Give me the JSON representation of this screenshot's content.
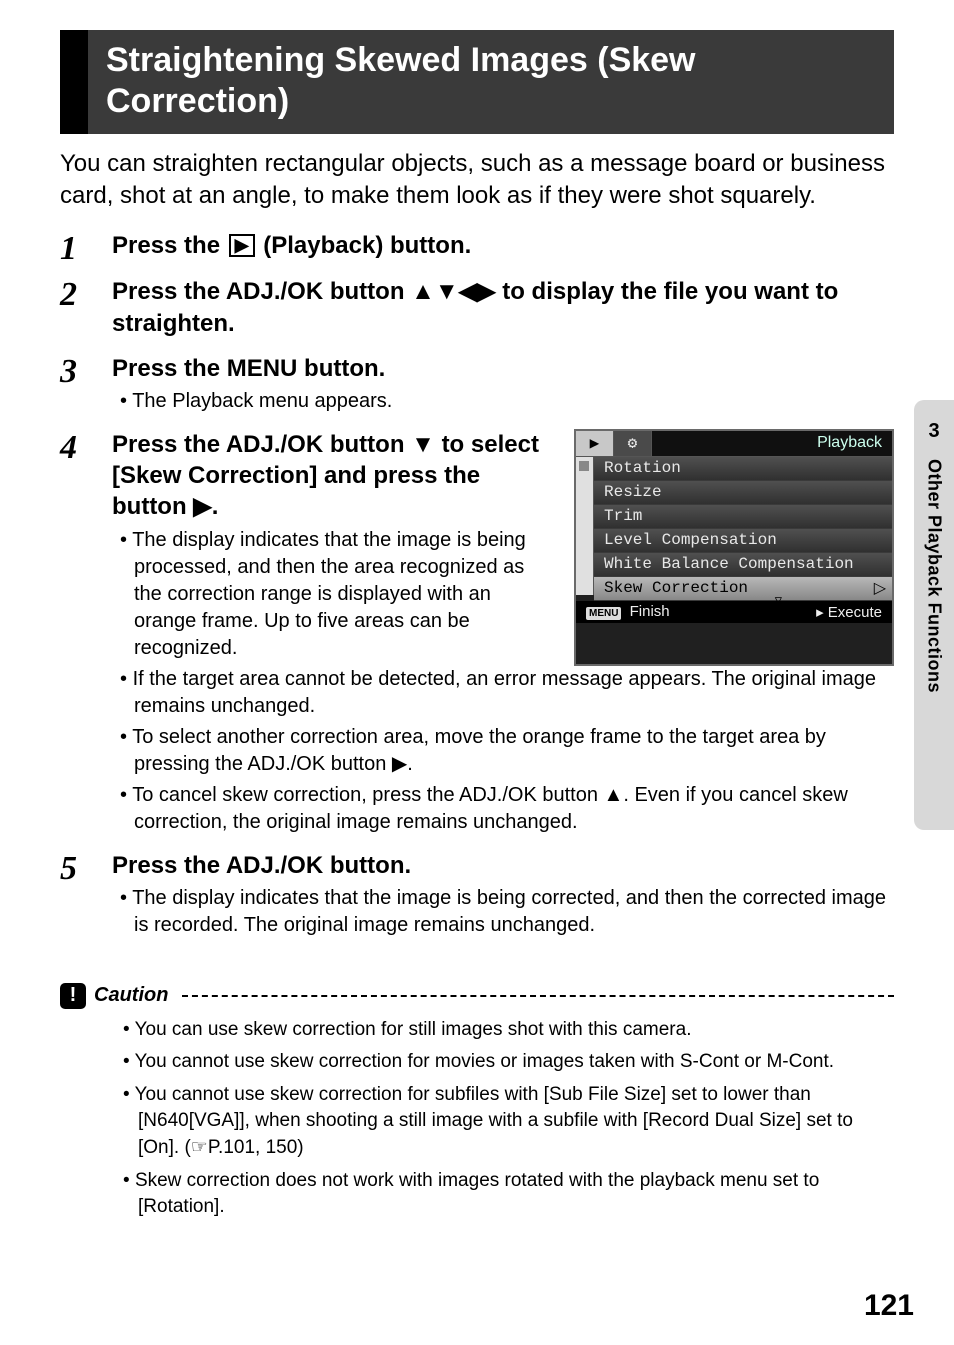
{
  "title": "Straightening Skewed Images (Skew Correction)",
  "intro": "You can straighten rectangular objects, such as a message board or business card, shot at an angle, to make them look as if they were shot squarely.",
  "steps": {
    "s1": {
      "num": "1",
      "title_pre": "Press the ",
      "title_post": " (Playback) button."
    },
    "s2": {
      "num": "2",
      "title": "Press the ADJ./OK button ▲▼◀▶ to display the file you want to straighten."
    },
    "s3": {
      "num": "3",
      "title": "Press the MENU button.",
      "sub1": "The Playback menu appears."
    },
    "s4": {
      "num": "4",
      "title": "Press the ADJ./OK button ▼ to select [Skew Correction] and press the button ▶.",
      "sub1": "The display indicates that the image is being processed, and then the area recognized as the correction range is displayed with an orange frame. Up to five areas can be recognized.",
      "sub2": "If the target area cannot be detected, an error message appears. The original image remains unchanged.",
      "sub3": "To select another correction area, move the orange frame to the target area by pressing the ADJ./OK button ▶.",
      "sub4": "To cancel skew correction, press the ADJ./OK button ▲. Even if you cancel skew correction, the original image remains unchanged."
    },
    "s5": {
      "num": "5",
      "title": "Press the ADJ./OK button.",
      "sub1": "The display indicates that the image is being corrected, and then the corrected image is recorded. The original image remains unchanged."
    }
  },
  "playback_menu": {
    "header_label": "Playback",
    "items": [
      "Rotation",
      "Resize",
      "Trim",
      "Level Compensation",
      "White Balance Compensation",
      "Skew Correction"
    ],
    "footer_left": "Finish",
    "footer_left_chip": "MENU",
    "footer_right": "Execute"
  },
  "side_tab": {
    "num": "3",
    "label": "Other Playback Functions"
  },
  "caution": {
    "label": "Caution",
    "items": [
      "You can use skew correction for still images shot with this camera.",
      "You cannot use skew correction for movies or images taken with S-Cont or M-Cont.",
      "You cannot use skew correction for subfiles with [Sub File Size] set to lower than [N640[VGA]], when shooting a still image with a subfile with [Record Dual Size] set to [On]. (☞P.101, 150)",
      "Skew correction does not work with images rotated with the playback menu set to [Rotation]."
    ]
  },
  "page_number": "121",
  "icons": {
    "play": "▶",
    "excl": "!"
  },
  "colors": {
    "title_bar_bg": "#3a3a3a",
    "side_tab_bg": "#d8d8d8",
    "playback_bg": "#202020"
  }
}
